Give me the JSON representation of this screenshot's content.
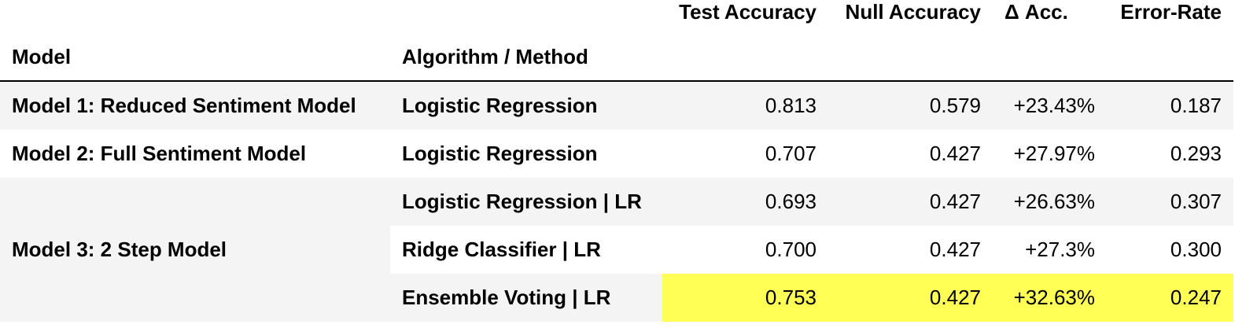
{
  "table": {
    "header_top": {
      "test_accuracy": "Test Accuracy",
      "null_accuracy": "Null Accuracy",
      "delta_acc": "Δ Acc.",
      "error_rate": "Error-Rate"
    },
    "header_bottom": {
      "model": "Model",
      "algorithm": "Algorithm / Method"
    },
    "rows": [
      {
        "model": "Model 1: Reduced Sentiment Model",
        "algorithm": "Logistic Regression",
        "test_accuracy": "0.813",
        "null_accuracy": "0.579",
        "delta_acc": "+23.43%",
        "error_rate": "0.187"
      },
      {
        "model": "Model 2: Full Sentiment Model",
        "algorithm": "Logistic Regression",
        "test_accuracy": "0.707",
        "null_accuracy": "0.427",
        "delta_acc": "+27.97%",
        "error_rate": "0.293"
      },
      {
        "model": "Model 3: 2 Step Model",
        "algorithm": "Logistic Regression | LR",
        "test_accuracy": "0.693",
        "null_accuracy": "0.427",
        "delta_acc": "+26.63%",
        "error_rate": "0.307"
      },
      {
        "algorithm": "Ridge Classifier | LR",
        "test_accuracy": "0.700",
        "null_accuracy": "0.427",
        "delta_acc": "+27.3%",
        "error_rate": "0.300"
      },
      {
        "algorithm": "Ensemble Voting | LR",
        "test_accuracy": "0.753",
        "null_accuracy": "0.427",
        "delta_acc": "+32.63%",
        "error_rate": "0.247"
      }
    ]
  },
  "colors": {
    "highlight": "#ffff55",
    "stripe": "#f4f4f4",
    "text": "#000000",
    "rule": "#000000"
  }
}
